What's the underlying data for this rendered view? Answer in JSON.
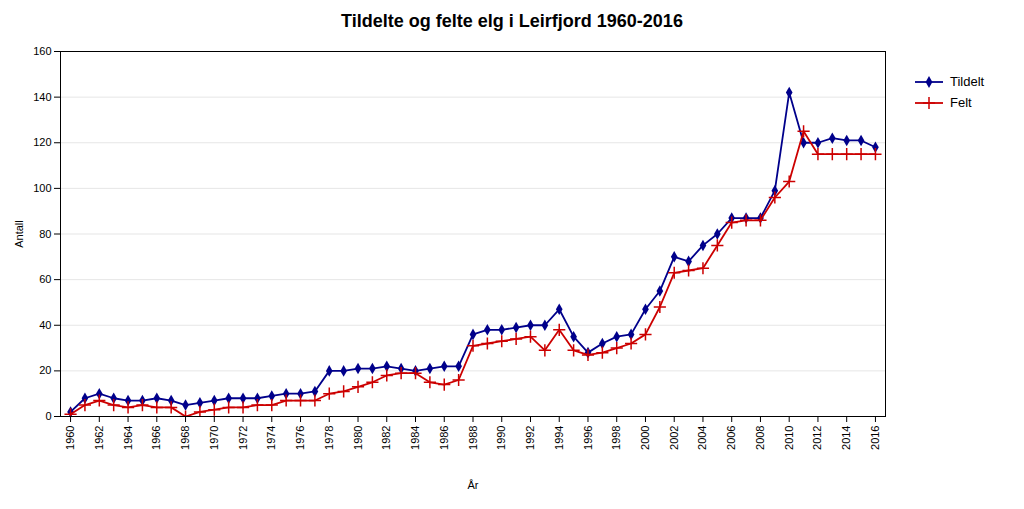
{
  "chart_data": {
    "type": "line",
    "title": "Tildelte og felte elg i Leirfjord 1960-2016",
    "xlabel": "År",
    "ylabel": "Antall",
    "x": [
      1960,
      1961,
      1962,
      1963,
      1964,
      1965,
      1966,
      1967,
      1968,
      1969,
      1970,
      1971,
      1972,
      1973,
      1974,
      1975,
      1976,
      1977,
      1978,
      1979,
      1980,
      1981,
      1982,
      1983,
      1984,
      1985,
      1986,
      1987,
      1988,
      1989,
      1990,
      1991,
      1992,
      1993,
      1994,
      1995,
      1996,
      1997,
      1998,
      1999,
      2000,
      2001,
      2002,
      2003,
      2004,
      2005,
      2006,
      2007,
      2008,
      2009,
      2010,
      2011,
      2012,
      2013,
      2014,
      2015,
      2016
    ],
    "series": [
      {
        "name": "Tildelt",
        "color": "#00008B",
        "marker": "diamond",
        "values": [
          2,
          8,
          10,
          8,
          7,
          7,
          8,
          7,
          5,
          6,
          7,
          8,
          8,
          8,
          9,
          10,
          10,
          11,
          20,
          20,
          21,
          21,
          22,
          21,
          20,
          21,
          22,
          22,
          36,
          38,
          38,
          39,
          40,
          40,
          47,
          35,
          28,
          32,
          35,
          36,
          47,
          55,
          70,
          68,
          75,
          80,
          87,
          87,
          87,
          99,
          142,
          120,
          120,
          122,
          121,
          121,
          118
        ]
      },
      {
        "name": "Felt",
        "color": "#CC0000",
        "marker": "plus",
        "values": [
          1,
          5,
          7,
          5,
          4,
          5,
          4,
          4,
          0,
          2,
          3,
          4,
          4,
          5,
          5,
          7,
          7,
          7,
          10,
          11,
          13,
          15,
          18,
          19,
          19,
          15,
          14,
          16,
          31,
          32,
          33,
          34,
          35,
          29,
          38,
          29,
          27,
          28,
          30,
          32,
          36,
          48,
          63,
          64,
          65,
          75,
          85,
          86,
          86,
          96,
          103,
          125,
          115,
          115,
          115,
          115,
          115
        ]
      }
    ],
    "xlim": [
      1959.3,
      2016.7
    ],
    "xticks": [
      1960,
      1962,
      1964,
      1966,
      1968,
      1970,
      1972,
      1974,
      1976,
      1978,
      1980,
      1982,
      1984,
      1986,
      1988,
      1990,
      1992,
      1994,
      1996,
      1998,
      2000,
      2002,
      2004,
      2006,
      2008,
      2010,
      2012,
      2014,
      2016
    ],
    "ylim": [
      0,
      160
    ],
    "yticks": [
      0,
      20,
      40,
      60,
      80,
      100,
      120,
      140,
      160
    ],
    "grid": true,
    "legend": "right"
  }
}
